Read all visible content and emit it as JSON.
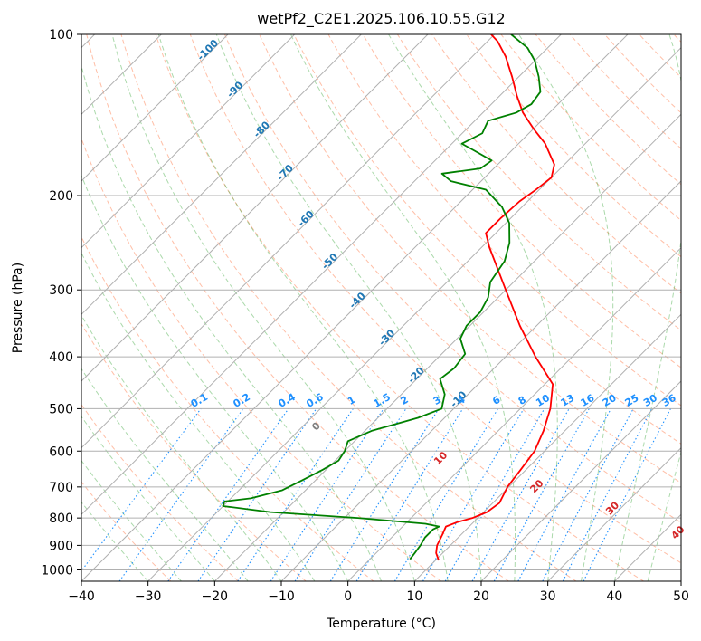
{
  "chart_data": {
    "type": "line",
    "title": "wetPf2_C2E1.2025.106.10.55.G12",
    "xlabel": "Temperature (°C)",
    "ylabel": "Pressure (hPa)",
    "xlim": [
      -40,
      50
    ],
    "ylim": [
      1050,
      100
    ],
    "y_scale": "log",
    "skew": "skew-T",
    "x_ticks": [
      -40,
      -30,
      -20,
      -10,
      0,
      10,
      20,
      30,
      40,
      50
    ],
    "y_ticks": [
      100,
      200,
      300,
      400,
      500,
      600,
      700,
      800,
      900,
      1000
    ],
    "grid": true,
    "colors": {
      "temperature": "#ff0000",
      "dewpoint": "#008000",
      "isotherm": "#808080",
      "dry_adiabat": "#ff7f50",
      "moist_adiabat": "#2ca02c",
      "mixing_ratio": "#1e90ff",
      "dry_adiabat_label": "#1f77b4",
      "moist_adiabat_label": "#d62728"
    },
    "series": [
      {
        "name": "",
        "key": "temperature",
        "points": [
          {
            "p": 960,
            "t": 10.5
          },
          {
            "p": 930,
            "t": 9.0
          },
          {
            "p": 900,
            "t": 8.0
          },
          {
            "p": 860,
            "t": 7.2
          },
          {
            "p": 830,
            "t": 6.5
          },
          {
            "p": 815,
            "t": 7.5
          },
          {
            "p": 800,
            "t": 9.2
          },
          {
            "p": 780,
            "t": 10.5
          },
          {
            "p": 750,
            "t": 11.0
          },
          {
            "p": 700,
            "t": 9.8
          },
          {
            "p": 650,
            "t": 9.2
          },
          {
            "p": 600,
            "t": 8.5
          },
          {
            "p": 550,
            "t": 6.8
          },
          {
            "p": 500,
            "t": 4.5
          },
          {
            "p": 450,
            "t": 1.2
          },
          {
            "p": 400,
            "t": -5.5
          },
          {
            "p": 350,
            "t": -12.5
          },
          {
            "p": 300,
            "t": -20.0
          },
          {
            "p": 250,
            "t": -28.8
          },
          {
            "p": 235,
            "t": -31.5
          },
          {
            "p": 220,
            "t": -31.5
          },
          {
            "p": 205,
            "t": -31.2
          },
          {
            "p": 195,
            "t": -30.5
          },
          {
            "p": 185,
            "t": -30.0
          },
          {
            "p": 175,
            "t": -31.5
          },
          {
            "p": 160,
            "t": -36.0
          },
          {
            "p": 150,
            "t": -40.0
          },
          {
            "p": 140,
            "t": -44.0
          },
          {
            "p": 130,
            "t": -47.5
          },
          {
            "p": 120,
            "t": -51.0
          },
          {
            "p": 110,
            "t": -55.0
          },
          {
            "p": 103,
            "t": -58.5
          },
          {
            "p": 100,
            "t": -60.5
          }
        ]
      },
      {
        "name": "",
        "key": "dewpoint",
        "points": [
          {
            "p": 955,
            "t": 6.0
          },
          {
            "p": 930,
            "t": 5.8
          },
          {
            "p": 900,
            "t": 5.5
          },
          {
            "p": 870,
            "t": 5.0
          },
          {
            "p": 840,
            "t": 5.0
          },
          {
            "p": 830,
            "t": 5.5
          },
          {
            "p": 820,
            "t": 3.0
          },
          {
            "p": 800,
            "t": -8.0
          },
          {
            "p": 780,
            "t": -22.0
          },
          {
            "p": 760,
            "t": -30.0
          },
          {
            "p": 745,
            "t": -30.5
          },
          {
            "p": 735,
            "t": -27.0
          },
          {
            "p": 710,
            "t": -23.5
          },
          {
            "p": 680,
            "t": -22.0
          },
          {
            "p": 650,
            "t": -20.5
          },
          {
            "p": 625,
            "t": -19.5
          },
          {
            "p": 600,
            "t": -20.0
          },
          {
            "p": 575,
            "t": -21.0
          },
          {
            "p": 550,
            "t": -19.0
          },
          {
            "p": 520,
            "t": -14.0
          },
          {
            "p": 500,
            "t": -11.8
          },
          {
            "p": 470,
            "t": -13.5
          },
          {
            "p": 440,
            "t": -16.5
          },
          {
            "p": 420,
            "t": -16.0
          },
          {
            "p": 395,
            "t": -16.5
          },
          {
            "p": 370,
            "t": -19.5
          },
          {
            "p": 350,
            "t": -20.5
          },
          {
            "p": 330,
            "t": -20.5
          },
          {
            "p": 310,
            "t": -21.5
          },
          {
            "p": 290,
            "t": -23.5
          },
          {
            "p": 265,
            "t": -24.5
          },
          {
            "p": 245,
            "t": -26.5
          },
          {
            "p": 225,
            "t": -29.5
          },
          {
            "p": 210,
            "t": -33.0
          },
          {
            "p": 195,
            "t": -38.0
          },
          {
            "p": 188,
            "t": -44.5
          },
          {
            "p": 182,
            "t": -47.0
          },
          {
            "p": 178,
            "t": -42.0
          },
          {
            "p": 172,
            "t": -41.5
          },
          {
            "p": 165,
            "t": -45.5
          },
          {
            "p": 160,
            "t": -48.5
          },
          {
            "p": 153,
            "t": -47.0
          },
          {
            "p": 145,
            "t": -48.0
          },
          {
            "p": 140,
            "t": -45.0
          },
          {
            "p": 135,
            "t": -44.0
          },
          {
            "p": 128,
            "t": -44.5
          },
          {
            "p": 120,
            "t": -47.0
          },
          {
            "p": 112,
            "t": -50.0
          },
          {
            "p": 106,
            "t": -53.0
          },
          {
            "p": 100,
            "t": -57.5
          }
        ]
      }
    ],
    "dry_adiabat_labels": [
      "-100",
      "-90",
      "-80",
      "-70",
      "-60",
      "-50",
      "-40",
      "-30",
      "-20",
      "-10"
    ],
    "mixing_ratio_labels": [
      "0.1",
      "0.2",
      "0.4",
      "0.6",
      "1",
      "1.5",
      "2",
      "3",
      "4",
      "6",
      "8",
      "10",
      "13",
      "16",
      "20",
      "25",
      "30",
      "36"
    ],
    "moist_adiabat_labels": [
      "0",
      "10",
      "20",
      "30",
      "40"
    ]
  }
}
